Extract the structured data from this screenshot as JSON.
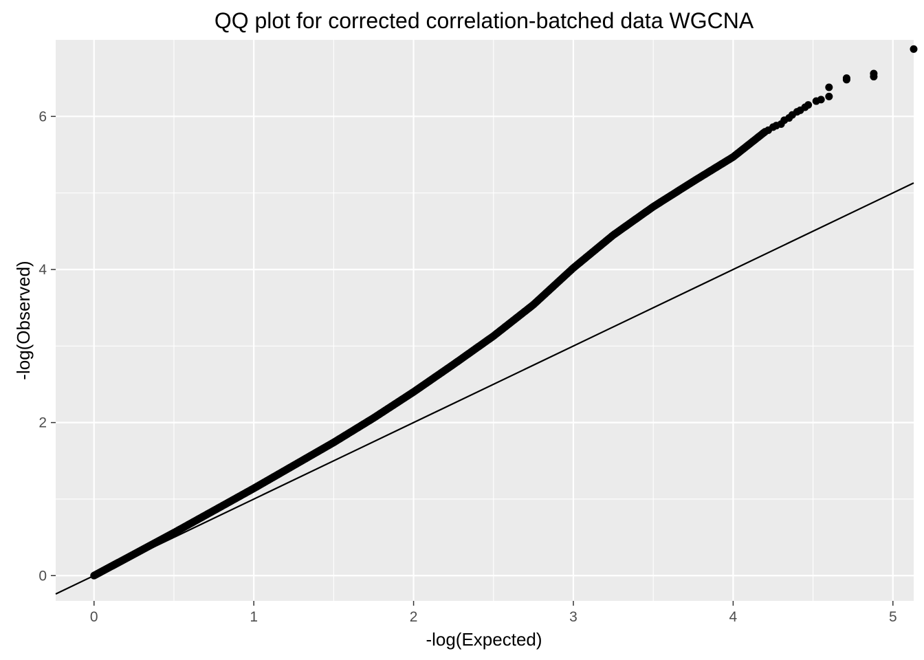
{
  "chart_data": {
    "type": "scatter",
    "title": "QQ plot for corrected correlation-batched data WGCNA",
    "xlabel": "-log(Expected)",
    "ylabel": "-log(Observed)",
    "xlim": [
      -0.24,
      5.13
    ],
    "ylim": [
      -0.33,
      7.0
    ],
    "x_ticks": [
      0,
      1,
      2,
      3,
      4,
      5
    ],
    "x_tick_labels": [
      "0",
      "1",
      "2",
      "3",
      "4",
      "5"
    ],
    "y_ticks": [
      0,
      2,
      4,
      6
    ],
    "y_tick_labels": [
      "0",
      "2",
      "4",
      "6"
    ],
    "grid": true,
    "legend": "none",
    "colors": {
      "panel_background": "#ebebeb",
      "grid": "#ffffff",
      "points": "#000000",
      "reference_line": "#000000",
      "tick_label": "#4d4d4d"
    },
    "reference_line": {
      "slope": 1,
      "intercept": 0
    },
    "curve": {
      "x": [
        0,
        0.25,
        0.5,
        0.75,
        1.0,
        1.25,
        1.5,
        1.75,
        2.0,
        2.25,
        2.5,
        2.75,
        3.0,
        3.25,
        3.5,
        3.75,
        4.0,
        4.2
      ],
      "y": [
        0,
        0.28,
        0.56,
        0.85,
        1.14,
        1.44,
        1.74,
        2.06,
        2.4,
        2.76,
        3.13,
        3.54,
        4.02,
        4.45,
        4.82,
        5.15,
        5.47,
        5.8
      ]
    },
    "tail_points": {
      "x": [
        4.22,
        4.25,
        4.27,
        4.3,
        4.32,
        4.35,
        4.37,
        4.4,
        4.42,
        4.45,
        4.47,
        4.52,
        4.55,
        4.6,
        4.6,
        4.71,
        4.71,
        4.88,
        4.88,
        5.13
      ],
      "y": [
        5.82,
        5.86,
        5.88,
        5.9,
        5.95,
        5.98,
        6.02,
        6.06,
        6.08,
        6.12,
        6.15,
        6.2,
        6.22,
        6.26,
        6.38,
        6.48,
        6.5,
        6.52,
        6.56,
        6.88
      ]
    }
  }
}
